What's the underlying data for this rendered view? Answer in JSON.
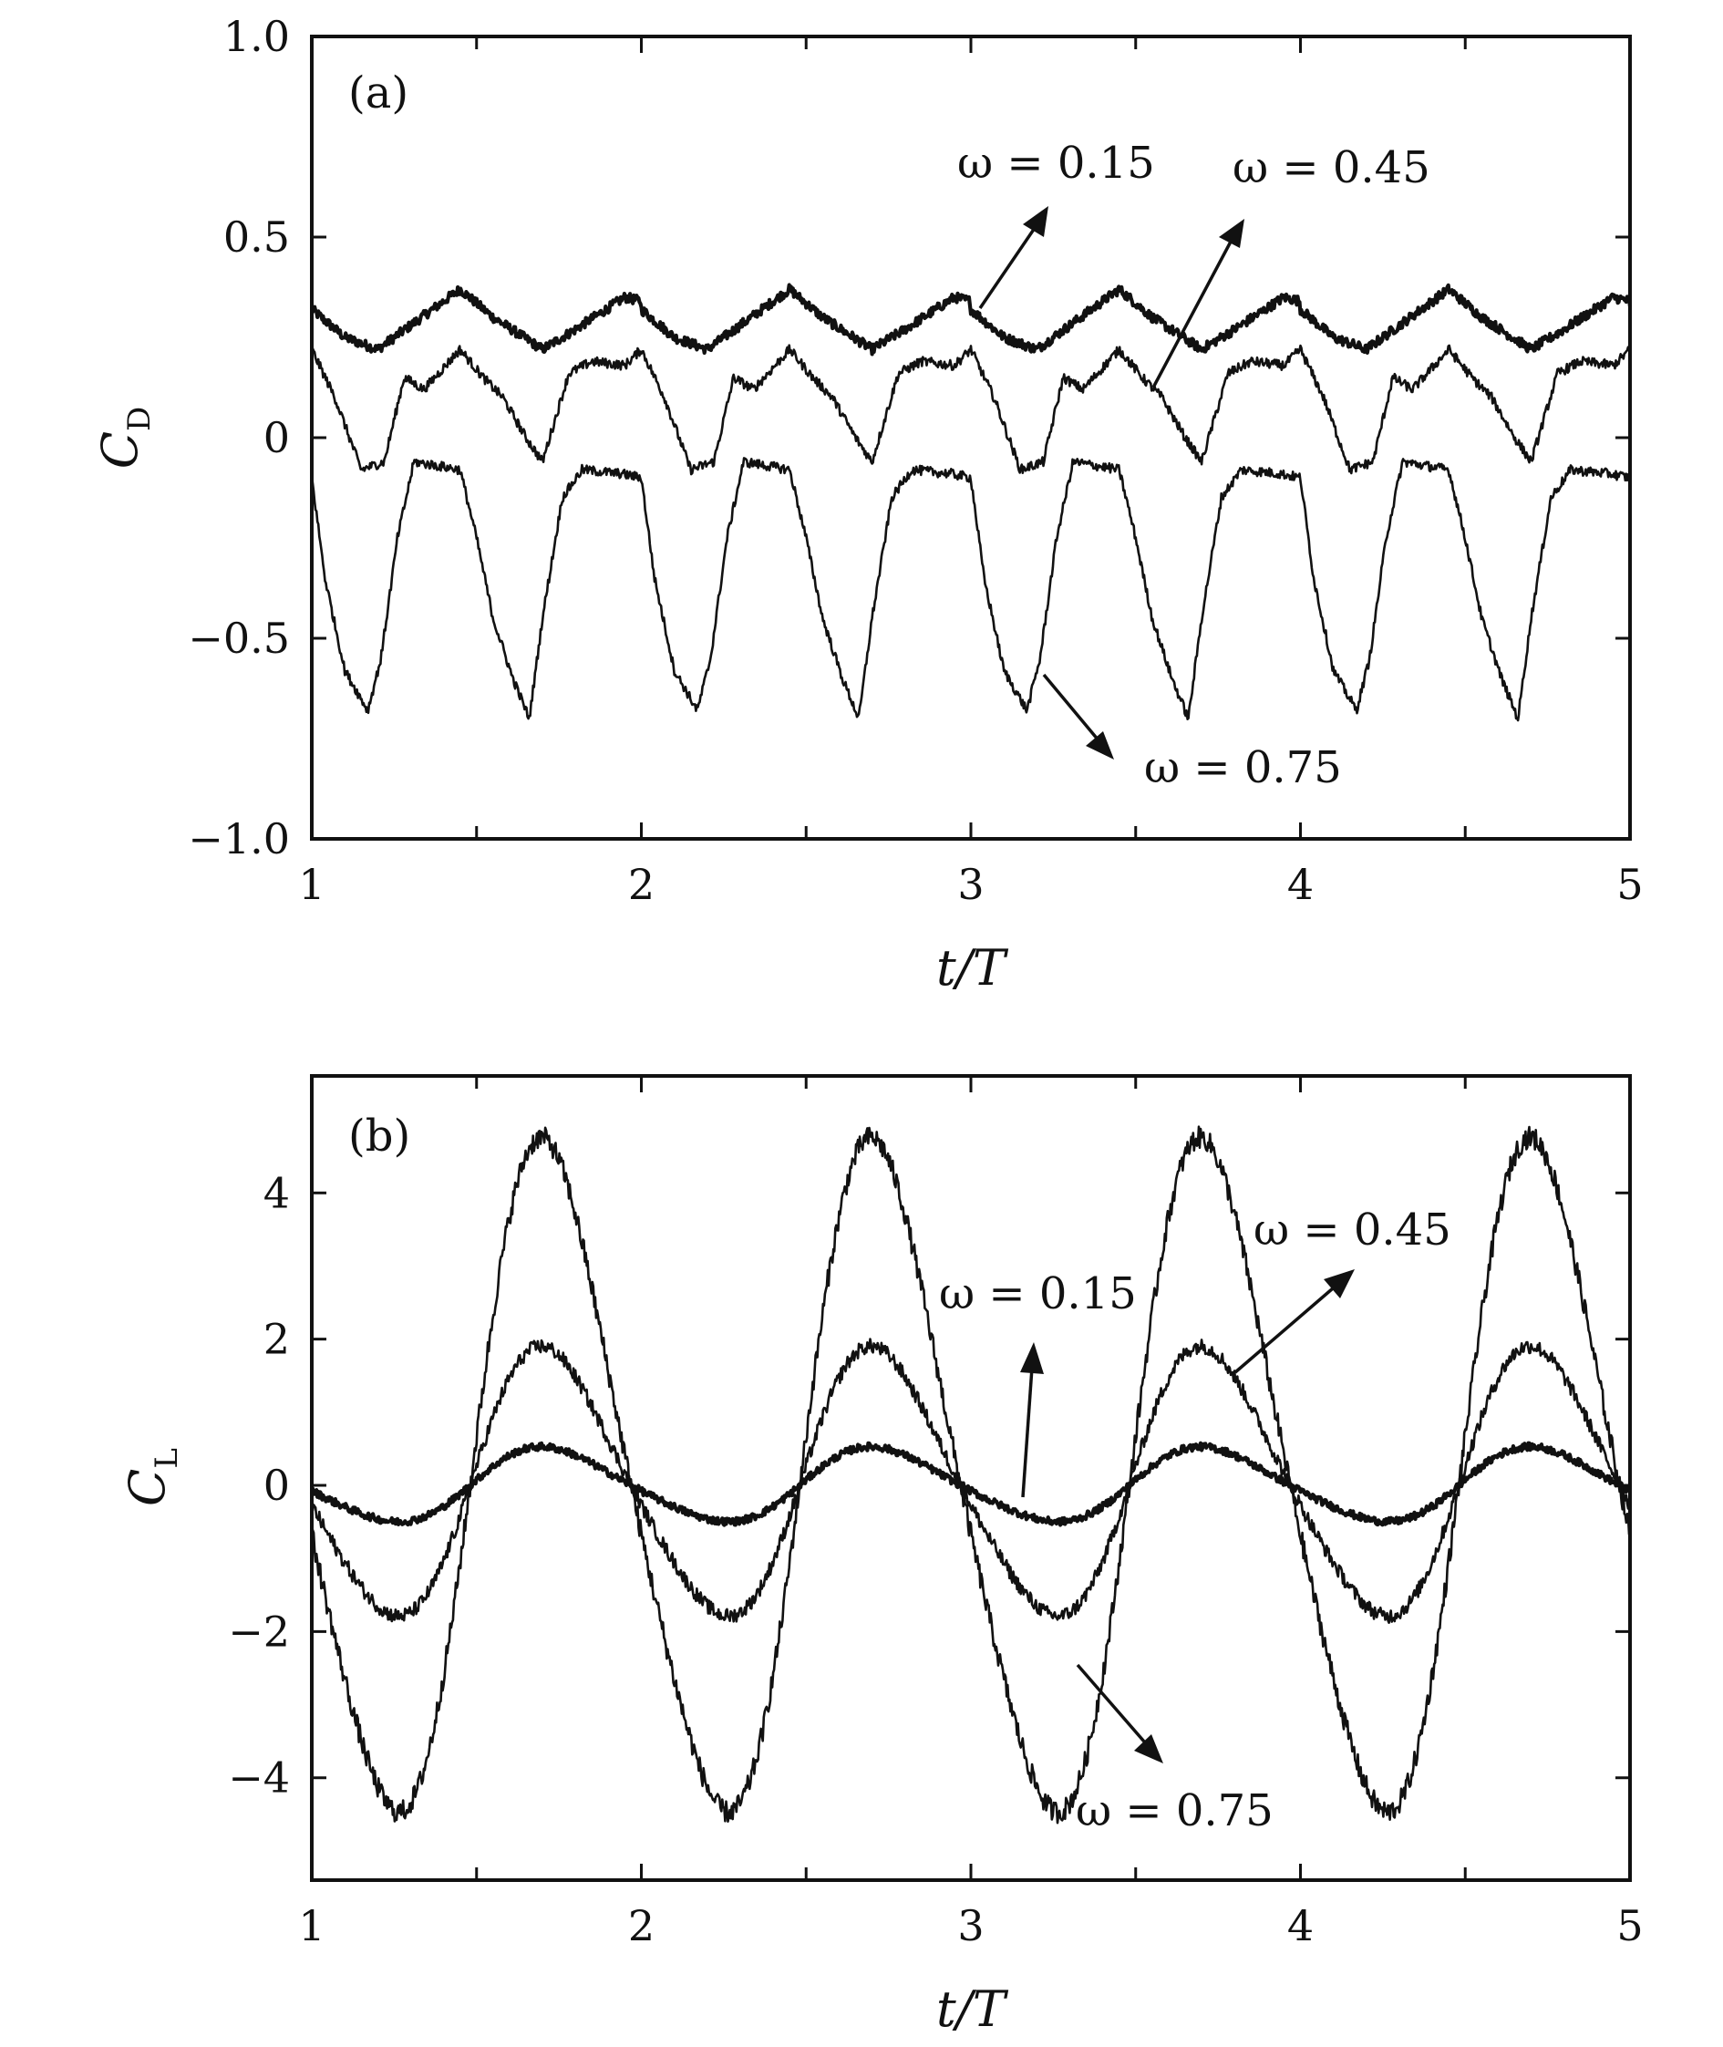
{
  "chart_data": [
    {
      "type": "line",
      "panel_label": "(a)",
      "xlabel": {
        "main": "t/T"
      },
      "ylabel": {
        "main": "C",
        "sub": "D"
      },
      "xlim": [
        1,
        5
      ],
      "ylim": [
        -1.0,
        1.0
      ],
      "x_ticks": [
        1,
        2,
        3,
        4,
        5
      ],
      "x_tick_labels": [
        "1",
        "2",
        "3",
        "4",
        "5"
      ],
      "y_ticks": [
        -1.0,
        -0.5,
        0,
        0.5,
        1.0
      ],
      "y_tick_labels": [
        "−1.0",
        "−0.5",
        "0",
        "0.5",
        "1.0"
      ],
      "grid": false,
      "series": [
        {
          "name": "ω = 0.15",
          "period": 1,
          "x": [
            1.0,
            1.1,
            1.2,
            1.3,
            1.45,
            1.55,
            1.7,
            1.8,
            1.95,
            2.0
          ],
          "y": [
            0.32,
            0.25,
            0.22,
            0.28,
            0.37,
            0.3,
            0.22,
            0.27,
            0.35,
            0.34
          ]
        },
        {
          "name": "ω = 0.45",
          "period": 1,
          "x": [
            1.0,
            1.07,
            1.15,
            1.22,
            1.28,
            1.34,
            1.45,
            1.52,
            1.58,
            1.65,
            1.7,
            1.78,
            1.85,
            1.95,
            2.0
          ],
          "y": [
            0.22,
            0.1,
            -0.08,
            -0.06,
            0.15,
            0.12,
            0.22,
            0.15,
            0.1,
            0.0,
            -0.06,
            0.16,
            0.19,
            0.18,
            0.22
          ]
        },
        {
          "name": "ω = 0.75",
          "period": 1,
          "x": [
            1.0,
            1.04,
            1.1,
            1.17,
            1.21,
            1.26,
            1.31,
            1.45,
            1.5,
            1.55,
            1.61,
            1.66,
            1.7,
            1.76,
            1.82,
            1.94,
            2.0
          ],
          "y": [
            -0.1,
            -0.35,
            -0.58,
            -0.68,
            -0.55,
            -0.25,
            -0.06,
            -0.08,
            -0.25,
            -0.45,
            -0.6,
            -0.7,
            -0.45,
            -0.15,
            -0.08,
            -0.09,
            -0.1
          ]
        }
      ],
      "annotations": [
        {
          "text": "ω = 0.15"
        },
        {
          "text": "ω = 0.45"
        },
        {
          "text": "ω = 0.75"
        }
      ]
    },
    {
      "type": "line",
      "panel_label": "(b)",
      "xlabel": {
        "main": "t/T"
      },
      "ylabel": {
        "main": "C",
        "sub": "L"
      },
      "xlim": [
        1,
        5
      ],
      "ylim": [
        -5.4,
        5.6
      ],
      "x_ticks": [
        1,
        2,
        3,
        4,
        5
      ],
      "x_tick_labels": [
        "1",
        "2",
        "3",
        "4",
        "5"
      ],
      "y_ticks": [
        -4,
        -2,
        0,
        2,
        4
      ],
      "y_tick_labels": [
        "−4",
        "−2",
        "0",
        "2",
        "4"
      ],
      "grid": false,
      "series": [
        {
          "name": "ω = 0.15",
          "amplitude": 0.5,
          "period": 1
        },
        {
          "name": "ω = 0.45",
          "amplitude": 1.8,
          "period": 1
        },
        {
          "name": "ω = 0.75",
          "amplitude": 4.5,
          "period": 1
        }
      ],
      "annotations": [
        {
          "text": "ω = 0.15"
        },
        {
          "text": "ω = 0.45"
        },
        {
          "text": "ω = 0.75"
        }
      ]
    }
  ]
}
